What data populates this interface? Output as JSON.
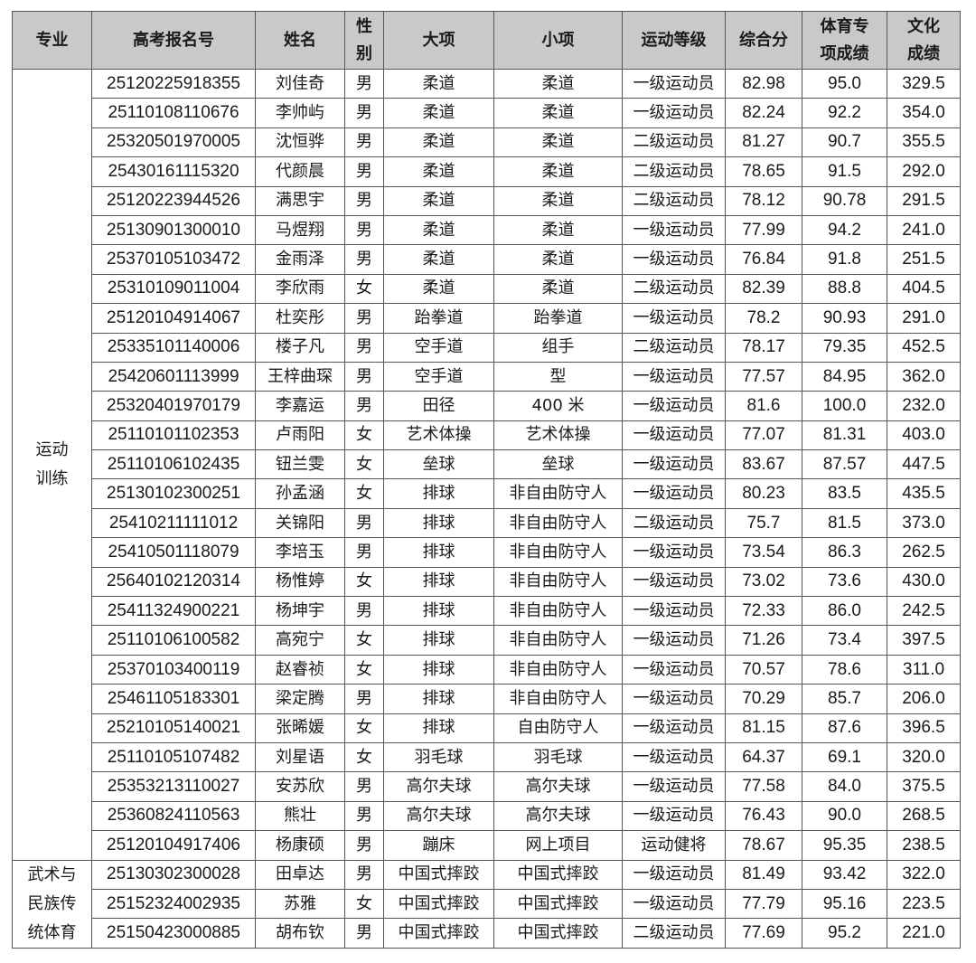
{
  "headers": [
    "专业",
    "高考报名号",
    "姓名",
    "性别",
    "大项",
    "小项",
    "运动等级",
    "综合分",
    "体育专项成绩",
    "文化成绩"
  ],
  "header_lines": [
    [
      "专业"
    ],
    [
      "高考报名号"
    ],
    [
      "姓名"
    ],
    [
      "性",
      "别"
    ],
    [
      "大项"
    ],
    [
      "小项"
    ],
    [
      "运动等级"
    ],
    [
      "综合分"
    ],
    [
      "体育专",
      "项成绩"
    ],
    [
      "文化",
      "成绩"
    ]
  ],
  "groups": [
    {
      "major": "运动训练",
      "major_lines": [
        "运动",
        "训练"
      ],
      "rows": [
        [
          "25120225918355",
          "刘佳奇",
          "男",
          "柔道",
          "柔道",
          "一级运动员",
          "82.98",
          "95.0",
          "329.5"
        ],
        [
          "25110108110676",
          "李帅屿",
          "男",
          "柔道",
          "柔道",
          "一级运动员",
          "82.24",
          "92.2",
          "354.0"
        ],
        [
          "25320501970005",
          "沈恒骅",
          "男",
          "柔道",
          "柔道",
          "二级运动员",
          "81.27",
          "90.7",
          "355.5"
        ],
        [
          "25430161115320",
          "代颜晨",
          "男",
          "柔道",
          "柔道",
          "二级运动员",
          "78.65",
          "91.5",
          "292.0"
        ],
        [
          "25120223944526",
          "满思宇",
          "男",
          "柔道",
          "柔道",
          "二级运动员",
          "78.12",
          "90.78",
          "291.5"
        ],
        [
          "25130901300010",
          "马煜翔",
          "男",
          "柔道",
          "柔道",
          "一级运动员",
          "77.99",
          "94.2",
          "241.0"
        ],
        [
          "25370105103472",
          "金雨泽",
          "男",
          "柔道",
          "柔道",
          "一级运动员",
          "76.84",
          "91.8",
          "251.5"
        ],
        [
          "25310109011004",
          "李欣雨",
          "女",
          "柔道",
          "柔道",
          "二级运动员",
          "82.39",
          "88.8",
          "404.5"
        ],
        [
          "25120104914067",
          "杜奕彤",
          "男",
          "跆拳道",
          "跆拳道",
          "一级运动员",
          "78.2",
          "90.93",
          "291.0"
        ],
        [
          "25335101140006",
          "楼子凡",
          "男",
          "空手道",
          "组手",
          "二级运动员",
          "78.17",
          "79.35",
          "452.5"
        ],
        [
          "25420601113999",
          "王梓曲琛",
          "男",
          "空手道",
          "型",
          "一级运动员",
          "77.57",
          "84.95",
          "362.0"
        ],
        [
          "25320401970179",
          "李嘉运",
          "男",
          "田径",
          "400 米",
          "一级运动员",
          "81.6",
          "100.0",
          "232.0"
        ],
        [
          "25110101102353",
          "卢雨阳",
          "女",
          "艺术体操",
          "艺术体操",
          "一级运动员",
          "77.07",
          "81.31",
          "403.0"
        ],
        [
          "25110106102435",
          "钮兰雯",
          "女",
          "垒球",
          "垒球",
          "一级运动员",
          "83.67",
          "87.57",
          "447.5"
        ],
        [
          "25130102300251",
          "孙孟涵",
          "女",
          "排球",
          "非自由防守人",
          "一级运动员",
          "80.23",
          "83.5",
          "435.5"
        ],
        [
          "25410211111012",
          "关锦阳",
          "男",
          "排球",
          "非自由防守人",
          "二级运动员",
          "75.7",
          "81.5",
          "373.0"
        ],
        [
          "25410501118079",
          "李培玉",
          "男",
          "排球",
          "非自由防守人",
          "一级运动员",
          "73.54",
          "86.3",
          "262.5"
        ],
        [
          "25640102120314",
          "杨惟婷",
          "女",
          "排球",
          "非自由防守人",
          "一级运动员",
          "73.02",
          "73.6",
          "430.0"
        ],
        [
          "25411324900221",
          "杨坤宇",
          "男",
          "排球",
          "非自由防守人",
          "一级运动员",
          "72.33",
          "86.0",
          "242.5"
        ],
        [
          "25110106100582",
          "高宛宁",
          "女",
          "排球",
          "非自由防守人",
          "一级运动员",
          "71.26",
          "73.4",
          "397.5"
        ],
        [
          "25370103400119",
          "赵睿祯",
          "女",
          "排球",
          "非自由防守人",
          "一级运动员",
          "70.57",
          "78.6",
          "311.0"
        ],
        [
          "25461105183301",
          "梁定腾",
          "男",
          "排球",
          "非自由防守人",
          "一级运动员",
          "70.29",
          "85.7",
          "206.0"
        ],
        [
          "25210105140021",
          "张晞媛",
          "女",
          "排球",
          "自由防守人",
          "一级运动员",
          "81.15",
          "87.6",
          "396.5"
        ],
        [
          "25110105107482",
          "刘星语",
          "女",
          "羽毛球",
          "羽毛球",
          "一级运动员",
          "64.37",
          "69.1",
          "320.0"
        ],
        [
          "25353213110027",
          "安苏欣",
          "男",
          "高尔夫球",
          "高尔夫球",
          "一级运动员",
          "77.58",
          "84.0",
          "375.5"
        ],
        [
          "25360824110563",
          "熊壮",
          "男",
          "高尔夫球",
          "高尔夫球",
          "一级运动员",
          "76.43",
          "90.0",
          "268.5"
        ],
        [
          "25120104917406",
          "杨康硕",
          "男",
          "蹦床",
          "网上项目",
          "运动健将",
          "78.67",
          "95.35",
          "238.5"
        ]
      ]
    },
    {
      "major": "武术与民族传统体育",
      "major_lines": [
        "武术与",
        "民族传",
        "统体育"
      ],
      "rows": [
        [
          "25130302300028",
          "田卓达",
          "男",
          "中国式摔跤",
          "中国式摔跤",
          "一级运动员",
          "81.49",
          "93.42",
          "322.0"
        ],
        [
          "25152324002935",
          "苏雅",
          "女",
          "中国式摔跤",
          "中国式摔跤",
          "一级运动员",
          "77.79",
          "95.16",
          "223.5"
        ],
        [
          "25150423000885",
          "胡布钦",
          "男",
          "中国式摔跤",
          "中国式摔跤",
          "二级运动员",
          "77.69",
          "95.2",
          "221.0"
        ]
      ]
    }
  ]
}
